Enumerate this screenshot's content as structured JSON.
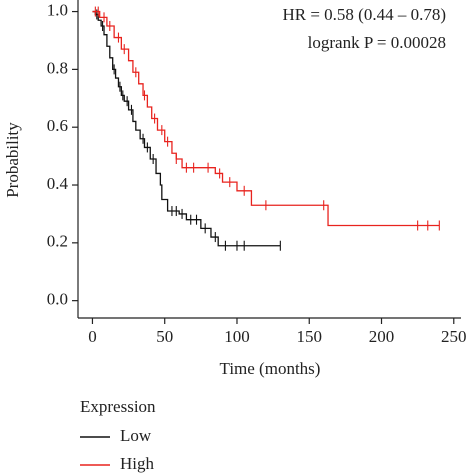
{
  "chart_data": {
    "type": "line",
    "step": true,
    "xlabel": "Time (months)",
    "ylabel": "Probability",
    "annotations": [
      "HR = 0.58 (0.44 – 0.78)",
      "logrank P = 0.00028"
    ],
    "legend_title": "Expression",
    "xlim": [
      -10,
      255
    ],
    "ylim": [
      -0.06,
      1.04
    ],
    "xticks": [
      0,
      50,
      100,
      150,
      200,
      250
    ],
    "yticks": [
      {
        "value": 0,
        "label": "0.0"
      },
      0.2,
      0.4,
      0.6,
      0.8,
      {
        "value": 1,
        "label": "1.0"
      }
    ],
    "series": [
      {
        "name": "Low",
        "color": "#111111",
        "x": [
          0,
          2,
          4,
          6,
          8,
          10,
          12,
          14,
          16,
          18,
          20,
          22,
          25,
          28,
          30,
          33,
          36,
          40,
          44,
          47,
          48,
          52,
          60,
          65,
          75,
          82,
          87,
          130
        ],
        "values": [
          1.0,
          0.99,
          0.97,
          0.95,
          0.92,
          0.88,
          0.84,
          0.8,
          0.77,
          0.74,
          0.71,
          0.69,
          0.66,
          0.62,
          0.59,
          0.56,
          0.53,
          0.49,
          0.44,
          0.4,
          0.35,
          0.31,
          0.3,
          0.28,
          0.25,
          0.22,
          0.19,
          0.19
        ],
        "censored": [
          3,
          7,
          15,
          19,
          21,
          24,
          27,
          35,
          38,
          42,
          55,
          58,
          62,
          68,
          72,
          78,
          85,
          92,
          100,
          105,
          130
        ]
      },
      {
        "name": "High",
        "color": "#e8231e",
        "x": [
          0,
          5,
          10,
          15,
          20,
          25,
          28,
          32,
          35,
          38,
          41,
          45,
          50,
          55,
          58,
          62,
          85,
          90,
          100,
          110,
          163,
          240
        ],
        "values": [
          1.0,
          0.98,
          0.95,
          0.91,
          0.87,
          0.83,
          0.79,
          0.75,
          0.71,
          0.67,
          0.63,
          0.59,
          0.55,
          0.51,
          0.49,
          0.46,
          0.44,
          0.41,
          0.38,
          0.33,
          0.26,
          0.26
        ],
        "censored": [
          2,
          4,
          8,
          12,
          18,
          22,
          30,
          36,
          43,
          48,
          52,
          58,
          65,
          70,
          80,
          88,
          95,
          105,
          120,
          160,
          225,
          232,
          240
        ]
      }
    ]
  }
}
